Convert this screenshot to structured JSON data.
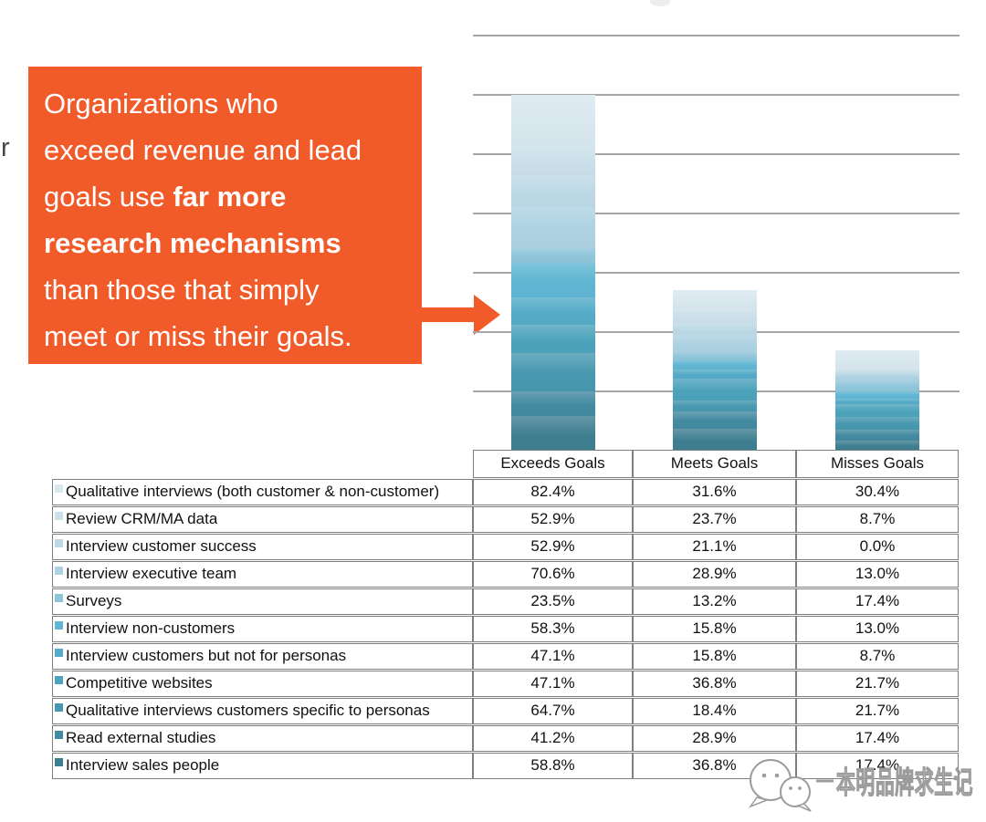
{
  "page": {
    "background": "#ffffff"
  },
  "left_text_fragment": "r",
  "callout": {
    "bg_color": "#f15a29",
    "text_color": "#ffffff",
    "full_text": "Organizations who exceed revenue and lead goals use far more research mechanisms than those that simply meet or miss their goals.",
    "lines": [
      [
        {
          "t": "Organizations who",
          "b": false
        }
      ],
      [
        {
          "t": "exceed revenue and lead",
          "b": false
        }
      ],
      [
        {
          "t": "goals use ",
          "b": false
        },
        {
          "t": "far more",
          "b": true
        }
      ],
      [
        {
          "t": "research mechanisms",
          "b": true
        }
      ],
      [
        {
          "t": "than those that simply",
          "b": false
        }
      ],
      [
        {
          "t": "meet or miss their goals.",
          "b": false
        }
      ]
    ]
  },
  "arrow": {
    "color": "#f15a29",
    "direction": "right"
  },
  "chart_data": {
    "type": "bar",
    "stacked": true,
    "categories": [
      "Exceeds Goals",
      "Meets Goals",
      "Misses Goals"
    ],
    "series": [
      {
        "name": "Qualitative interviews (both customer & non-customer)",
        "color": "#d9e7ef",
        "values": [
          82.4,
          31.6,
          30.4
        ]
      },
      {
        "name": "Review CRM/MA data",
        "color": "#cbe0ea",
        "values": [
          52.9,
          23.7,
          8.7
        ]
      },
      {
        "name": "Interview customer success",
        "color": "#bdd9e6",
        "values": [
          52.9,
          21.1,
          0.0
        ]
      },
      {
        "name": "Interview executive team",
        "color": "#add2e2",
        "values": [
          70.6,
          28.9,
          13.0
        ]
      },
      {
        "name": "Surveys",
        "color": "#8fc5da",
        "values": [
          23.5,
          13.2,
          17.4
        ]
      },
      {
        "name": "Interview  non-customers",
        "color": "#60b6d3",
        "values": [
          58.3,
          15.8,
          13.0
        ]
      },
      {
        "name": "Interview customers but not for personas",
        "color": "#55acc8",
        "values": [
          47.1,
          15.8,
          8.7
        ]
      },
      {
        "name": "Competitive websites",
        "color": "#4da3bc",
        "values": [
          47.1,
          36.8,
          21.7
        ]
      },
      {
        "name": "Qualitative interviews customers specific to personas",
        "color": "#4798b0",
        "values": [
          64.7,
          18.4,
          21.7
        ]
      },
      {
        "name": "Read external studies",
        "color": "#438aa0",
        "values": [
          41.2,
          28.9,
          17.4
        ]
      },
      {
        "name": "Interview sales people",
        "color": "#3f7e91",
        "values": [
          58.8,
          36.8,
          17.4
        ]
      }
    ],
    "ylim": [
      0,
      700
    ],
    "gridline_step": 100,
    "grid": true,
    "gridline_color": "#a6a6a6",
    "value_unit": "%",
    "legend_position": "data-table-below"
  },
  "watermark": {
    "logo": "wechat-logo-icon",
    "text": "本明品牌求生记",
    "color": "#9c9c9c"
  }
}
